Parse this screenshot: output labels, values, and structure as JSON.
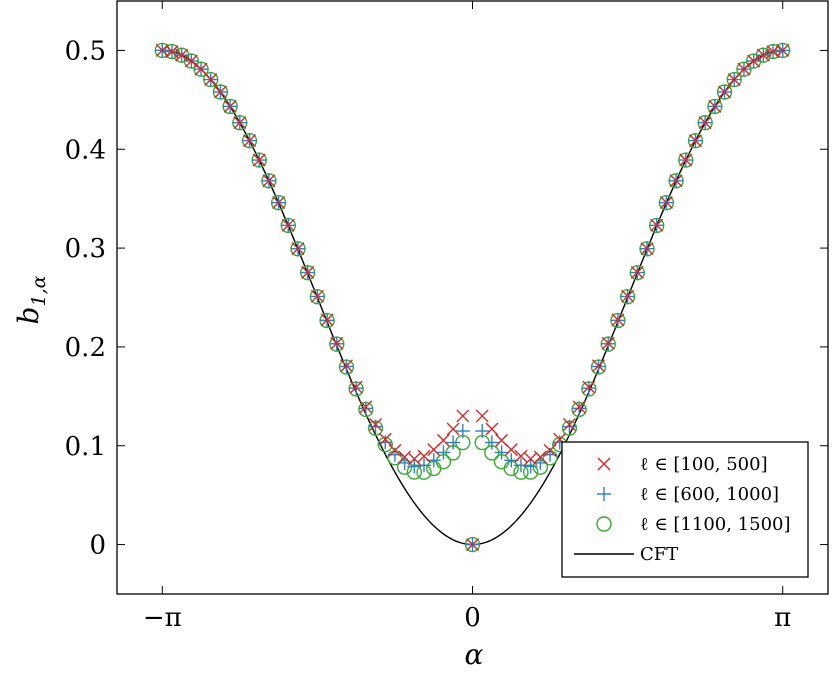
{
  "chart_data": {
    "type": "scatter",
    "xlabel": "α",
    "ylabel": "b1,α",
    "xlim": [
      -3.6,
      3.6
    ],
    "ylim": [
      -0.05,
      0.55
    ],
    "grid": false,
    "legend_position": "bottom-right",
    "x_ticks": [
      {
        "value": -3.14159,
        "label": "−π"
      },
      {
        "value": 0,
        "label": "0"
      },
      {
        "value": 3.14159,
        "label": "π"
      }
    ],
    "y_ticks": [
      {
        "value": 0,
        "label": "0"
      },
      {
        "value": 0.1,
        "label": "0.1"
      },
      {
        "value": 0.2,
        "label": "0.2"
      },
      {
        "value": 0.3,
        "label": "0.3"
      },
      {
        "value": 0.4,
        "label": "0.4"
      },
      {
        "value": 0.5,
        "label": "0.5"
      }
    ],
    "series": [
      {
        "name": "ℓ ∈ [100, 500]",
        "marker": "x",
        "color": "#d62728",
        "min_value": 0.145,
        "x_range": [
          -3.14159,
          3.14159
        ],
        "points": 64,
        "center_point": [
          0,
          0
        ]
      },
      {
        "name": "ℓ ∈ [600, 1000]",
        "marker": "plus",
        "color": "#2f7fc1",
        "min_value": 0.128,
        "x_range": [
          -3.14159,
          3.14159
        ],
        "points": 64,
        "center_point": [
          0,
          0
        ]
      },
      {
        "name": "ℓ ∈ [1100, 1500]",
        "marker": "circle",
        "color": "#3aaa35",
        "min_value": 0.115,
        "x_range": [
          -3.14159,
          3.14159
        ],
        "points": 64,
        "center_point": [
          0,
          0
        ]
      },
      {
        "name": "CFT",
        "marker": "line",
        "color": "#000000"
      }
    ]
  }
}
